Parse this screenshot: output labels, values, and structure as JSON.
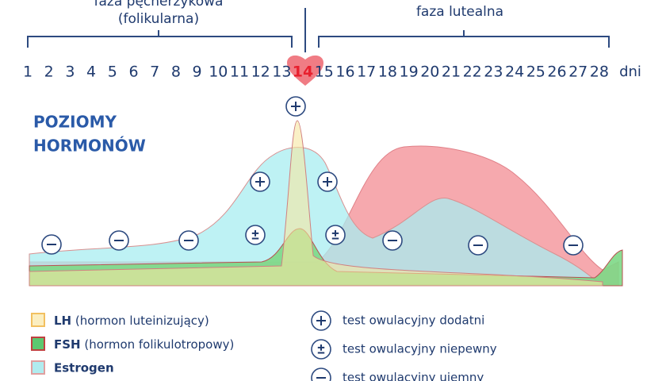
{
  "phases": {
    "follicular": [
      "faza pęcherzykowa",
      "(folikularna)"
    ],
    "luteal": "faza lutealna"
  },
  "days": [
    1,
    2,
    3,
    4,
    5,
    6,
    7,
    8,
    9,
    10,
    11,
    12,
    13,
    14,
    15,
    16,
    17,
    18,
    19,
    20,
    21,
    22,
    23,
    24,
    25,
    26,
    27,
    28
  ],
  "days_unit": "dni",
  "title": [
    "POZIOMY",
    "HORMONÓW"
  ],
  "legend": [
    {
      "abbr": "LH",
      "desc": "(hormon luteinizujący)"
    },
    {
      "abbr": "FSH",
      "desc": "(hormon folikulotropowy)"
    },
    {
      "abbr": "Estrogen"
    }
  ],
  "tests": [
    "test owulacyjny dodatni",
    "test owulacyjny niepewny",
    "test owulacyjny ujemny"
  ]
}
